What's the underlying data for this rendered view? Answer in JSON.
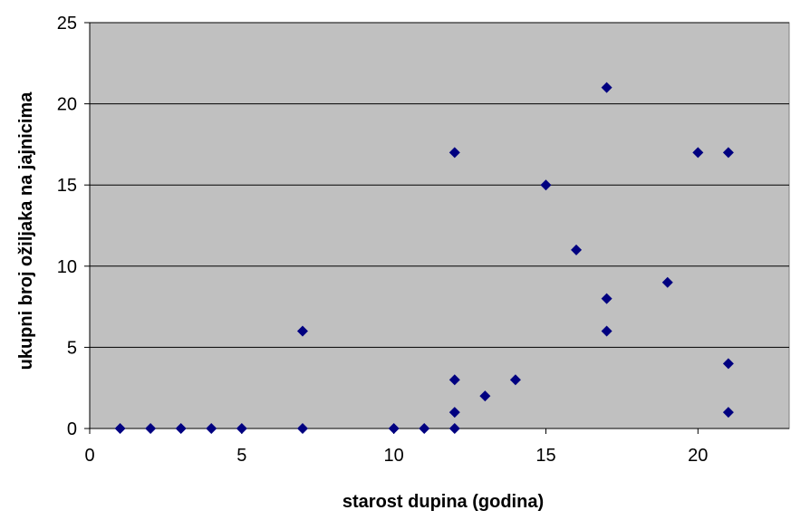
{
  "chart_data": {
    "type": "scatter",
    "title": "",
    "xlabel": "starost dupina (godina)",
    "ylabel": "ukupni broj ožiljaka na jajnicima",
    "xlim": [
      0,
      23
    ],
    "ylim": [
      0,
      25
    ],
    "xticks": [
      0,
      5,
      10,
      15,
      20
    ],
    "yticks": [
      0,
      5,
      10,
      15,
      20,
      25
    ],
    "grid": "horizontal",
    "plot_background": "#C0C0C0",
    "marker_color": "#000080",
    "marker_shape": "diamond",
    "series": [
      {
        "points": [
          [
            1,
            0
          ],
          [
            2,
            0
          ],
          [
            3,
            0
          ],
          [
            4,
            0
          ],
          [
            5,
            0
          ],
          [
            7,
            6
          ],
          [
            7,
            0
          ],
          [
            10,
            0
          ],
          [
            11,
            0
          ],
          [
            12,
            17
          ],
          [
            12,
            3
          ],
          [
            12,
            1
          ],
          [
            12,
            0
          ],
          [
            13,
            2
          ],
          [
            14,
            3
          ],
          [
            15,
            15
          ],
          [
            16,
            11
          ],
          [
            17,
            21
          ],
          [
            17,
            8
          ],
          [
            17,
            6
          ],
          [
            19,
            9
          ],
          [
            20,
            17
          ],
          [
            21,
            17
          ],
          [
            21,
            4
          ],
          [
            21,
            1
          ]
        ]
      }
    ]
  }
}
